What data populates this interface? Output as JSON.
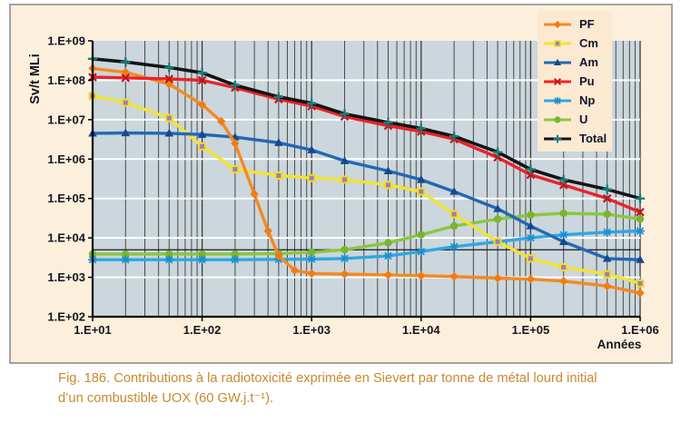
{
  "caption": {
    "line1": "Fig. 186. Contributions à la radiotoxicité exprimée en Sievert par tonne de métal lourd initial",
    "line2": "d’un combustible UOX (60 GW.j.t⁻¹)."
  },
  "colors": {
    "page_bg": "#FFFFFF",
    "figure_bg": "#FCF0DC",
    "figure_border": "#A3A3A3",
    "plot_bg": "#CBD6DD",
    "legend_bg": "#FBE9D2",
    "grid_major_horizontal": "#FFFFFF",
    "grid_vertical": "#4A4A4A",
    "axis": "#000000",
    "tick_text": "#16161F",
    "caption_text": "#C8892D"
  },
  "chart_data": {
    "type": "line",
    "title": "",
    "xlabel": "Années",
    "ylabel": "Sv/t MLi",
    "x_axis": {
      "unit": "Années",
      "scale": "log",
      "min": 10,
      "max": 1000000,
      "tick_values": [
        10,
        100,
        1000,
        10000,
        100000,
        1000000
      ],
      "tick_labels": [
        "1.E+01",
        "1.E+02",
        "1.E+03",
        "1.E+04",
        "1.E+05",
        "1.E+06"
      ]
    },
    "y_axis": {
      "title": "Sv/t MLi",
      "scale": "log",
      "min": 100,
      "max": 1000000000,
      "tick_values": [
        100,
        1000,
        10000,
        100000,
        1000000,
        10000000,
        100000000,
        1000000000
      ],
      "tick_labels": [
        "1.E+02",
        "1.E+03",
        "1.E+04",
        "1.E+05",
        "1.E+06",
        "1.E+07",
        "1.E+08",
        "1.E+09"
      ]
    },
    "grid": {
      "horizontal_major": true,
      "vertical_minor_log": true
    },
    "legend_position": "top-right",
    "reference_line": {
      "value": 5000,
      "color": "#1A1A1A"
    },
    "series": [
      {
        "name": "PF",
        "color": "#F5891F",
        "marker": "diamond",
        "marker_color": "#EE7D14",
        "points": [
          [
            10,
            200000000.0
          ],
          [
            20,
            160000000.0
          ],
          [
            50,
            80000000.0
          ],
          [
            100,
            24000000.0
          ],
          [
            150,
            9000000.0
          ],
          [
            200,
            2500000.0
          ],
          [
            300,
            130000.0
          ],
          [
            400,
            15000.0
          ],
          [
            500,
            3500.0
          ],
          [
            700,
            1500.0
          ],
          [
            1000,
            1250.0
          ],
          [
            2000,
            1200.0
          ],
          [
            5000,
            1150.0
          ],
          [
            10000,
            1100.0
          ],
          [
            20000,
            1050.0
          ],
          [
            50000,
            950.0
          ],
          [
            100000,
            900.0
          ],
          [
            200000,
            800.0
          ],
          [
            500000,
            600.0
          ],
          [
            1000000,
            400.0
          ]
        ]
      },
      {
        "name": "Cm",
        "color": "#F2E433",
        "marker": "square",
        "marker_color": "#9E7FB8",
        "marker_ring": "#EFDC2E",
        "points": [
          [
            10,
            40000000.0
          ],
          [
            20,
            27000000.0
          ],
          [
            50,
            11000000.0
          ],
          [
            100,
            2100000.0
          ],
          [
            200,
            550000.0
          ],
          [
            500,
            380000.0
          ],
          [
            1000,
            330000.0
          ],
          [
            2000,
            300000.0
          ],
          [
            5000,
            220000.0
          ],
          [
            10000,
            150000.0
          ],
          [
            20000,
            40000.0
          ],
          [
            50000,
            8000.0
          ],
          [
            100000,
            3000.0
          ],
          [
            200000,
            1800.0
          ],
          [
            500000,
            1200.0
          ],
          [
            1000000,
            700.0
          ]
        ]
      },
      {
        "name": "Am",
        "color": "#2268B2",
        "marker": "triangle",
        "marker_color": "#17498F",
        "points": [
          [
            10,
            4500000.0
          ],
          [
            20,
            4600000.0
          ],
          [
            50,
            4500000.0
          ],
          [
            100,
            4200000.0
          ],
          [
            200,
            3600000.0
          ],
          [
            500,
            2600000.0
          ],
          [
            1000,
            1700000.0
          ],
          [
            2000,
            900000.0
          ],
          [
            5000,
            500000.0
          ],
          [
            10000,
            300000.0
          ],
          [
            20000,
            150000.0
          ],
          [
            50000,
            55000.0
          ],
          [
            100000,
            20000.0
          ],
          [
            200000,
            8000.0
          ],
          [
            500000,
            3000.0
          ],
          [
            1000000,
            2800.0
          ]
        ]
      },
      {
        "name": "Pu",
        "color": "#EC2227",
        "marker": "x",
        "marker_color": "#C2151B",
        "points": [
          [
            10,
            120000000.0
          ],
          [
            20,
            115000000.0
          ],
          [
            50,
            108000000.0
          ],
          [
            100,
            100000000.0
          ],
          [
            200,
            65000000.0
          ],
          [
            500,
            33000000.0
          ],
          [
            1000,
            22000000.0
          ],
          [
            2000,
            12000000.0
          ],
          [
            5000,
            7000000.0
          ],
          [
            10000,
            5000000.0
          ],
          [
            20000,
            3200000.0
          ],
          [
            50000,
            1100000.0
          ],
          [
            100000,
            400000.0
          ],
          [
            200000,
            220000.0
          ],
          [
            500000,
            100000.0
          ],
          [
            1000000,
            45000.0
          ]
        ]
      },
      {
        "name": "Np",
        "color": "#2FA8E0",
        "marker": "asterisk",
        "marker_color": "#1D8FCC",
        "points": [
          [
            10,
            2800.0
          ],
          [
            20,
            2800.0
          ],
          [
            50,
            2800.0
          ],
          [
            100,
            2800.0
          ],
          [
            200,
            2800.0
          ],
          [
            500,
            2850.0
          ],
          [
            1000,
            2900.0
          ],
          [
            2000,
            3000.0
          ],
          [
            5000,
            3500.0
          ],
          [
            10000,
            4500.0
          ],
          [
            20000,
            6000.0
          ],
          [
            50000,
            8000.0
          ],
          [
            100000,
            10000.0
          ],
          [
            200000,
            12000.0
          ],
          [
            500000,
            14000.0
          ],
          [
            1000000,
            15000.0
          ]
        ]
      },
      {
        "name": "U",
        "color": "#8DC63F",
        "marker": "circle",
        "marker_color": "#7AB52F",
        "points": [
          [
            10,
            3900.0
          ],
          [
            20,
            3900.0
          ],
          [
            50,
            3900.0
          ],
          [
            100,
            3900.0
          ],
          [
            200,
            3900.0
          ],
          [
            500,
            4000.0
          ],
          [
            1000,
            4300.0
          ],
          [
            2000,
            5000.0
          ],
          [
            5000,
            7500.0
          ],
          [
            10000,
            12000.0
          ],
          [
            20000,
            20000.0
          ],
          [
            50000,
            30000.0
          ],
          [
            100000,
            38000.0
          ],
          [
            200000,
            42000.0
          ],
          [
            500000,
            40000.0
          ],
          [
            1000000,
            30000.0
          ]
        ]
      },
      {
        "name": "Total",
        "color": "#141414",
        "marker": "plus",
        "marker_color": "#177E7C",
        "points": [
          [
            10,
            350000000.0
          ],
          [
            20,
            290000000.0
          ],
          [
            50,
            210000000.0
          ],
          [
            100,
            155000000.0
          ],
          [
            200,
            75000000.0
          ],
          [
            500,
            38000000.0
          ],
          [
            1000,
            26000000.0
          ],
          [
            2000,
            14000000.0
          ],
          [
            5000,
            8500000.0
          ],
          [
            10000,
            6000000.0
          ],
          [
            20000,
            3800000.0
          ],
          [
            50000,
            1500000.0
          ],
          [
            100000,
            550000.0
          ],
          [
            200000,
            300000.0
          ],
          [
            500000,
            170000.0
          ],
          [
            1000000,
            100000.0
          ]
        ]
      }
    ]
  }
}
